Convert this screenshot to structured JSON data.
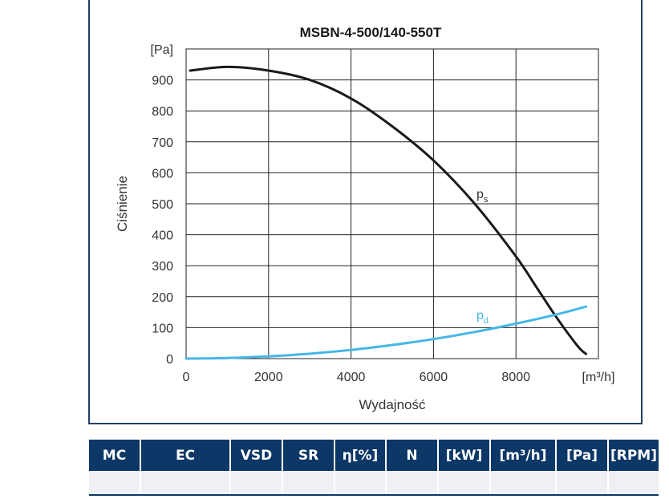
{
  "chart_data": {
    "type": "line",
    "title": "MSBN-4-500/140-550T",
    "ylabel": "Ciśnienie",
    "xlabel": "Wydajność",
    "y_unit": "[Pa]",
    "x_unit": "[m³/h]",
    "xlim": [
      0,
      10000
    ],
    "ylim": [
      0,
      1000
    ],
    "x_ticks": [
      "0",
      "2000",
      "4000",
      "6000",
      "8000"
    ],
    "y_ticks": [
      "0",
      "100",
      "200",
      "300",
      "400",
      "500",
      "600",
      "700",
      "800",
      "900"
    ],
    "grid": true,
    "series": [
      {
        "name": "ps",
        "label_main": "p",
        "label_sub": "s",
        "color": "#1a1a1a",
        "x": [
          100,
          1000,
          2000,
          3000,
          4000,
          5000,
          6000,
          7000,
          8000,
          8500,
          9000,
          9500,
          9700
        ],
        "y": [
          930,
          942,
          930,
          900,
          840,
          750,
          640,
          500,
          330,
          230,
          130,
          40,
          15
        ]
      },
      {
        "name": "pd",
        "label_main": "p",
        "label_sub": "d",
        "color": "#45b7e6",
        "x": [
          0,
          1000,
          2000,
          3000,
          4000,
          5000,
          6000,
          7000,
          8000,
          9000,
          9700
        ],
        "y": [
          0,
          2,
          7,
          16,
          28,
          44,
          63,
          86,
          113,
          143,
          168
        ]
      }
    ]
  },
  "table": {
    "headers": [
      "MC",
      "EC",
      "VSD",
      "SR",
      "η[%]",
      "N",
      "[kW]",
      "[m³/h]",
      "[Pa]",
      "[RPM]"
    ],
    "rows": [
      [
        "",
        "",
        "",
        "",
        "",
        "",
        "",
        "",
        "",
        ""
      ]
    ]
  }
}
